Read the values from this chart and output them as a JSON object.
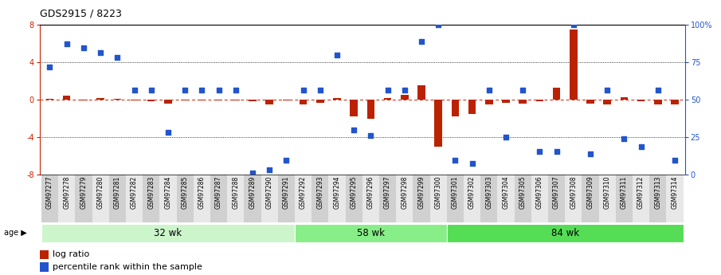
{
  "title": "GDS2915 / 8223",
  "samples": [
    "GSM97277",
    "GSM97278",
    "GSM97279",
    "GSM97280",
    "GSM97281",
    "GSM97282",
    "GSM97283",
    "GSM97284",
    "GSM97285",
    "GSM97286",
    "GSM97287",
    "GSM97288",
    "GSM97289",
    "GSM97290",
    "GSM97291",
    "GSM97292",
    "GSM97293",
    "GSM97294",
    "GSM97295",
    "GSM97296",
    "GSM97297",
    "GSM97298",
    "GSM97299",
    "GSM97300",
    "GSM97301",
    "GSM97302",
    "GSM97303",
    "GSM97304",
    "GSM97305",
    "GSM97306",
    "GSM97307",
    "GSM97308",
    "GSM97309",
    "GSM97310",
    "GSM97311",
    "GSM97312",
    "GSM97313",
    "GSM97314"
  ],
  "log_ratio": [
    0.1,
    0.4,
    -0.1,
    0.2,
    0.1,
    -0.1,
    -0.2,
    -0.4,
    -0.1,
    -0.1,
    -0.1,
    -0.1,
    -0.2,
    -0.5,
    -0.1,
    -0.5,
    -0.3,
    0.2,
    -1.8,
    -2.0,
    0.2,
    0.5,
    1.5,
    -5.0,
    -1.8,
    -1.5,
    -0.5,
    -0.3,
    -0.4,
    -0.2,
    1.3,
    7.5,
    -0.4,
    -0.5,
    0.3,
    -0.2,
    -0.5,
    -0.5
  ],
  "percentile": [
    3.5,
    6.0,
    5.5,
    5.0,
    4.5,
    1.0,
    1.0,
    -3.5,
    1.0,
    1.0,
    1.0,
    1.0,
    -7.8,
    -7.5,
    -6.5,
    1.0,
    1.0,
    4.8,
    -3.2,
    -3.8,
    1.0,
    1.0,
    6.2,
    8.0,
    -6.5,
    -6.8,
    1.0,
    -4.0,
    1.0,
    -5.5,
    -5.5,
    8.0,
    -5.8,
    1.0,
    -4.2,
    -5.0,
    1.0,
    -6.5
  ],
  "groups": [
    {
      "label": "32 wk",
      "start": 0,
      "end": 15,
      "color": "#ccf5cc"
    },
    {
      "label": "58 wk",
      "start": 15,
      "end": 24,
      "color": "#88ee88"
    },
    {
      "label": "84 wk",
      "start": 24,
      "end": 38,
      "color": "#55dd55"
    }
  ],
  "ylim": [
    -8,
    8
  ],
  "yticks_left": [
    -8,
    -4,
    0,
    4,
    8
  ],
  "yticks_right_labels": [
    "0",
    "25",
    "50",
    "75",
    "100%"
  ],
  "yticks_right_vals": [
    -8,
    -4,
    0,
    4,
    8
  ],
  "bar_color": "#bb2200",
  "dot_color": "#2255cc",
  "hline_color": "#cc2200",
  "bg_color": "#ffffff",
  "title_fontsize": 9,
  "tick_fontsize": 7,
  "sample_fontsize": 5.5,
  "legend_fontsize": 8,
  "group_fontsize": 8.5
}
